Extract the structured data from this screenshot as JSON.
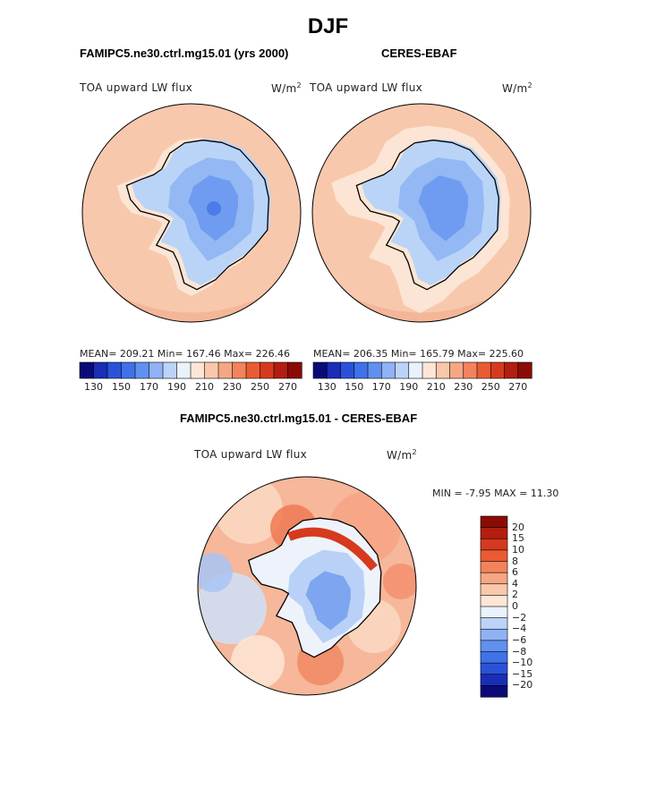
{
  "figure": {
    "season": "DJF",
    "colors": {
      "ocean": "#f8c8ad",
      "ocean_band": "#f4b698",
      "light_band": "#fce5d4",
      "ice_light": "#b9d4f7",
      "ice_mid": "#93b8f4",
      "ice_dark": "#6f9cf0",
      "ice_core": "#4b7ce8",
      "coast": "#000000"
    },
    "palette_top": [
      "#0a0a78",
      "#1a2db8",
      "#2a52d8",
      "#3f72e8",
      "#6090f0",
      "#8fb2f5",
      "#bcd3f8",
      "#eaf2fb",
      "#fde6d6",
      "#f9c8aa",
      "#f6a683",
      "#f2835c",
      "#ea5b33",
      "#d63a1e",
      "#b21e10",
      "#8a0c04"
    ],
    "palette_diff": [
      "#8a0c04",
      "#b21e10",
      "#d63a1e",
      "#ea5b33",
      "#f2835c",
      "#f6a683",
      "#f9c8aa",
      "#fde6d6",
      "#eaf2fb",
      "#bcd3f8",
      "#8fb2f5",
      "#6090f0",
      "#3f72e8",
      "#2a52d8",
      "#1a2db8",
      "#0a0a78"
    ]
  },
  "panel_left": {
    "case": "FAMIPC5.ne30.ctrl.mg15.01 (yrs 2000)",
    "variable": "TOA upward LW flux",
    "units_base": "W/m",
    "units_exp": "2",
    "stats": "MEAN= 209.21   Min= 167.46   Max= 226.46"
  },
  "panel_right": {
    "case": "CERES-EBAF",
    "variable": "TOA upward LW flux",
    "units_base": "W/m",
    "units_exp": "2",
    "stats": "MEAN= 206.35   Min= 165.79   Max= 225.60"
  },
  "panel_diff": {
    "case": "FAMIPC5.ne30.ctrl.mg15.01 - CERES-EBAF",
    "variable": "TOA upward LW flux",
    "units_base": "W/m",
    "units_exp": "2",
    "minmax": "MIN =   -7.95 MAX =   11.30"
  },
  "chart_data": [
    {
      "type": "heatmap",
      "projection": "south-polar-stereographic",
      "title": "FAMIPC5.ne30.ctrl.mg15.01 (yrs 2000)",
      "variable": "TOA upward LW flux",
      "units": "W/m2",
      "mean": 209.21,
      "min": 167.46,
      "max": 226.46,
      "colorbar_ticks": [
        "130",
        "150",
        "170",
        "190",
        "210",
        "230",
        "250",
        "270"
      ]
    },
    {
      "type": "heatmap",
      "projection": "south-polar-stereographic",
      "title": "CERES-EBAF",
      "variable": "TOA upward LW flux",
      "units": "W/m2",
      "mean": 206.35,
      "min": 165.79,
      "max": 225.6,
      "colorbar_ticks": [
        "130",
        "150",
        "170",
        "190",
        "210",
        "230",
        "250",
        "270"
      ]
    },
    {
      "type": "heatmap",
      "projection": "south-polar-stereographic",
      "title": "FAMIPC5.ne30.ctrl.mg15.01 - CERES-EBAF",
      "variable": "TOA upward LW flux",
      "units": "W/m2",
      "min": -7.95,
      "max": 11.3,
      "colorbar_ticks": [
        "20",
        "15",
        "10",
        "8",
        "6",
        "4",
        "2",
        "0",
        "−2",
        "−4",
        "−6",
        "−8",
        "−10",
        "−15",
        "−20"
      ]
    }
  ]
}
